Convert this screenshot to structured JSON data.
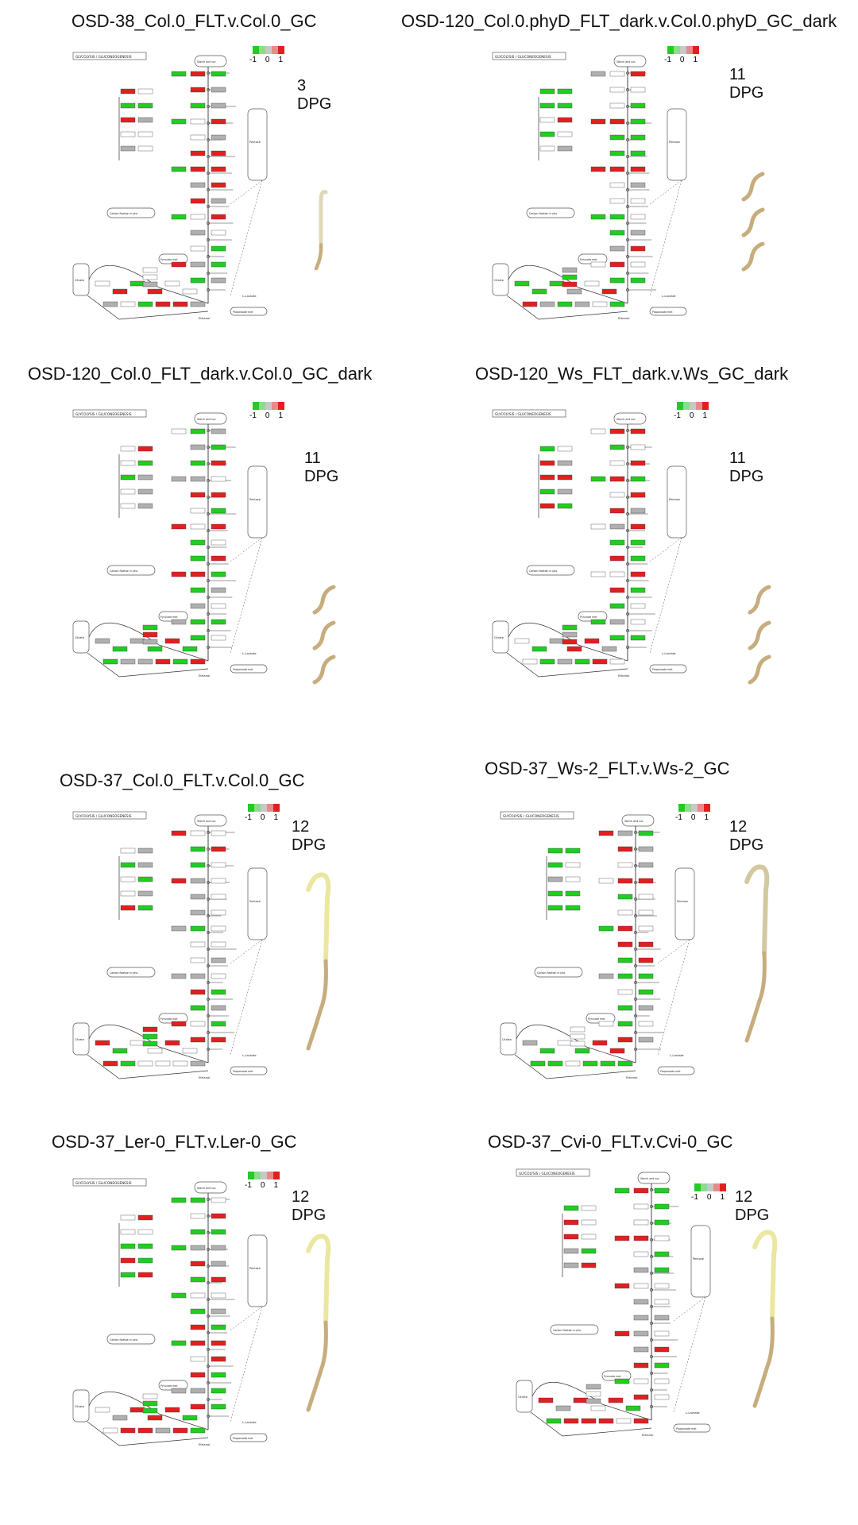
{
  "colors": {
    "up": "#e02020",
    "down": "#22cc22",
    "neutral": "#b0b0b0",
    "seedling_yellow": "#ece7a0",
    "seedling_tan": "#c7ad7d"
  },
  "legend_ticks": [
    "-1",
    "0",
    "1"
  ],
  "pathway": {
    "header": "GLYCOLYSIS / GLUCONEOGENESIS",
    "starch": "Starch and sucrose metabolism",
    "pentose": "Pentose phosphate pathway",
    "citrate": "Citrate cycle",
    "pyruvate_met": "Pyruvate metabolism",
    "propanoate": "Propanoate metabolism",
    "carbon_fixation": "Carbon fixation in photosynthetic organisms",
    "lactate": "L-Lactate",
    "pyruvate": "Pyruvate",
    "ethanol": "Ethanol"
  },
  "panels": [
    {
      "title": "OSD-38_Col.0_FLT.v.Col.0_GC",
      "dpg": "3 DPG"
    },
    {
      "title": "OSD-120_Col.0.phyD_FLT_dark.v.Col.0.phyD_GC_dark",
      "dpg": "11 DPG"
    },
    {
      "title": "OSD-120_Col.0_FLT_dark.v.Col.0_GC_dark",
      "dpg": "11 DPG"
    },
    {
      "title": "OSD-120_Ws_FLT_dark.v.Ws_GC_dark",
      "dpg": "11 DPG"
    },
    {
      "title": "OSD-37_Col.0_FLT.v.Col.0_GC",
      "dpg": "12 DPG"
    },
    {
      "title": "OSD-37_Ws-2_FLT.v.Ws-2_GC",
      "dpg": "12 DPG"
    },
    {
      "title": "OSD-37_Ler-0_FLT.v.Ler-0_GC",
      "dpg": "12 DPG"
    },
    {
      "title": "OSD-37_Cvi-0_FLT.v.Cvi-0_GC",
      "dpg": "12 DPG"
    }
  ]
}
